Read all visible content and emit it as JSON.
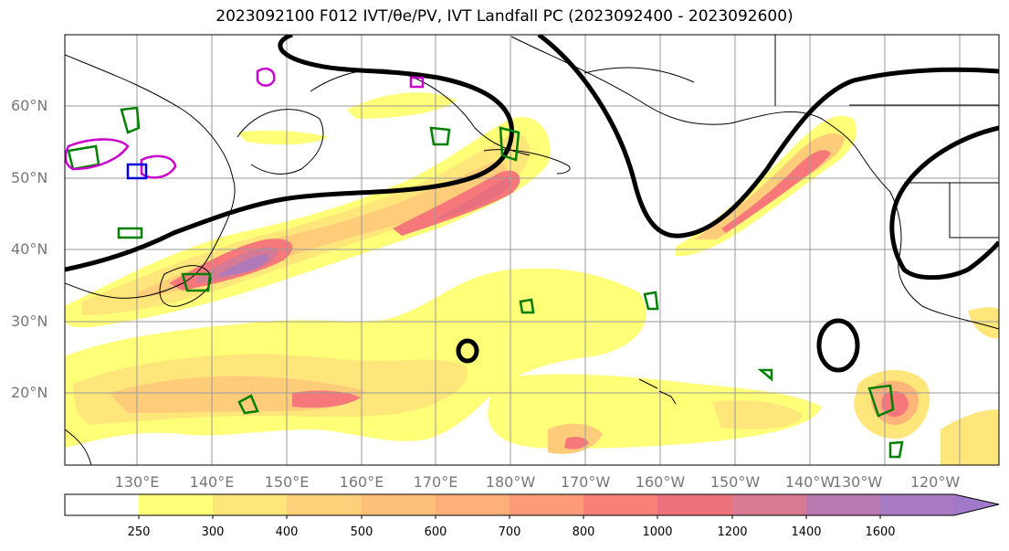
{
  "title": "2023092100 F012 IVT/θe/PV, IVT Landfall PC (2023092400 - 2023092600)",
  "map": {
    "lat_labels": [
      "60°N",
      "50°N",
      "40°N",
      "30°N",
      "20°N"
    ],
    "lon_labels": [
      "130°E",
      "140°E",
      "150°E",
      "160°E",
      "170°E",
      "180°W",
      "170°W",
      "160°W",
      "150°W",
      "140°W",
      "130°W",
      "120°W"
    ],
    "colors": {
      "ivt_250": "#ffff78",
      "ivt_300": "#ffe67a",
      "ivt_400": "#ffcc7a",
      "ivt_500": "#ffb47a",
      "ivt_600": "#ff9a78",
      "ivt_800": "#f7787a",
      "ivt_1000": "#e7707f",
      "ivt_1200": "#d47a95",
      "ivt_1400": "#b07ab8",
      "ivt_1600": "#a07ac8",
      "pv_contour": "#000000",
      "theta_green": "#008000",
      "theta_magenta": "#cc00cc",
      "theta_blue": "#0000dd",
      "coastline": "#000000",
      "grid": "#999999"
    }
  },
  "colorbar": {
    "labels": [
      "250",
      "300",
      "400",
      "500",
      "600",
      "700",
      "800",
      "1000",
      "1200",
      "1400",
      "1600"
    ]
  }
}
